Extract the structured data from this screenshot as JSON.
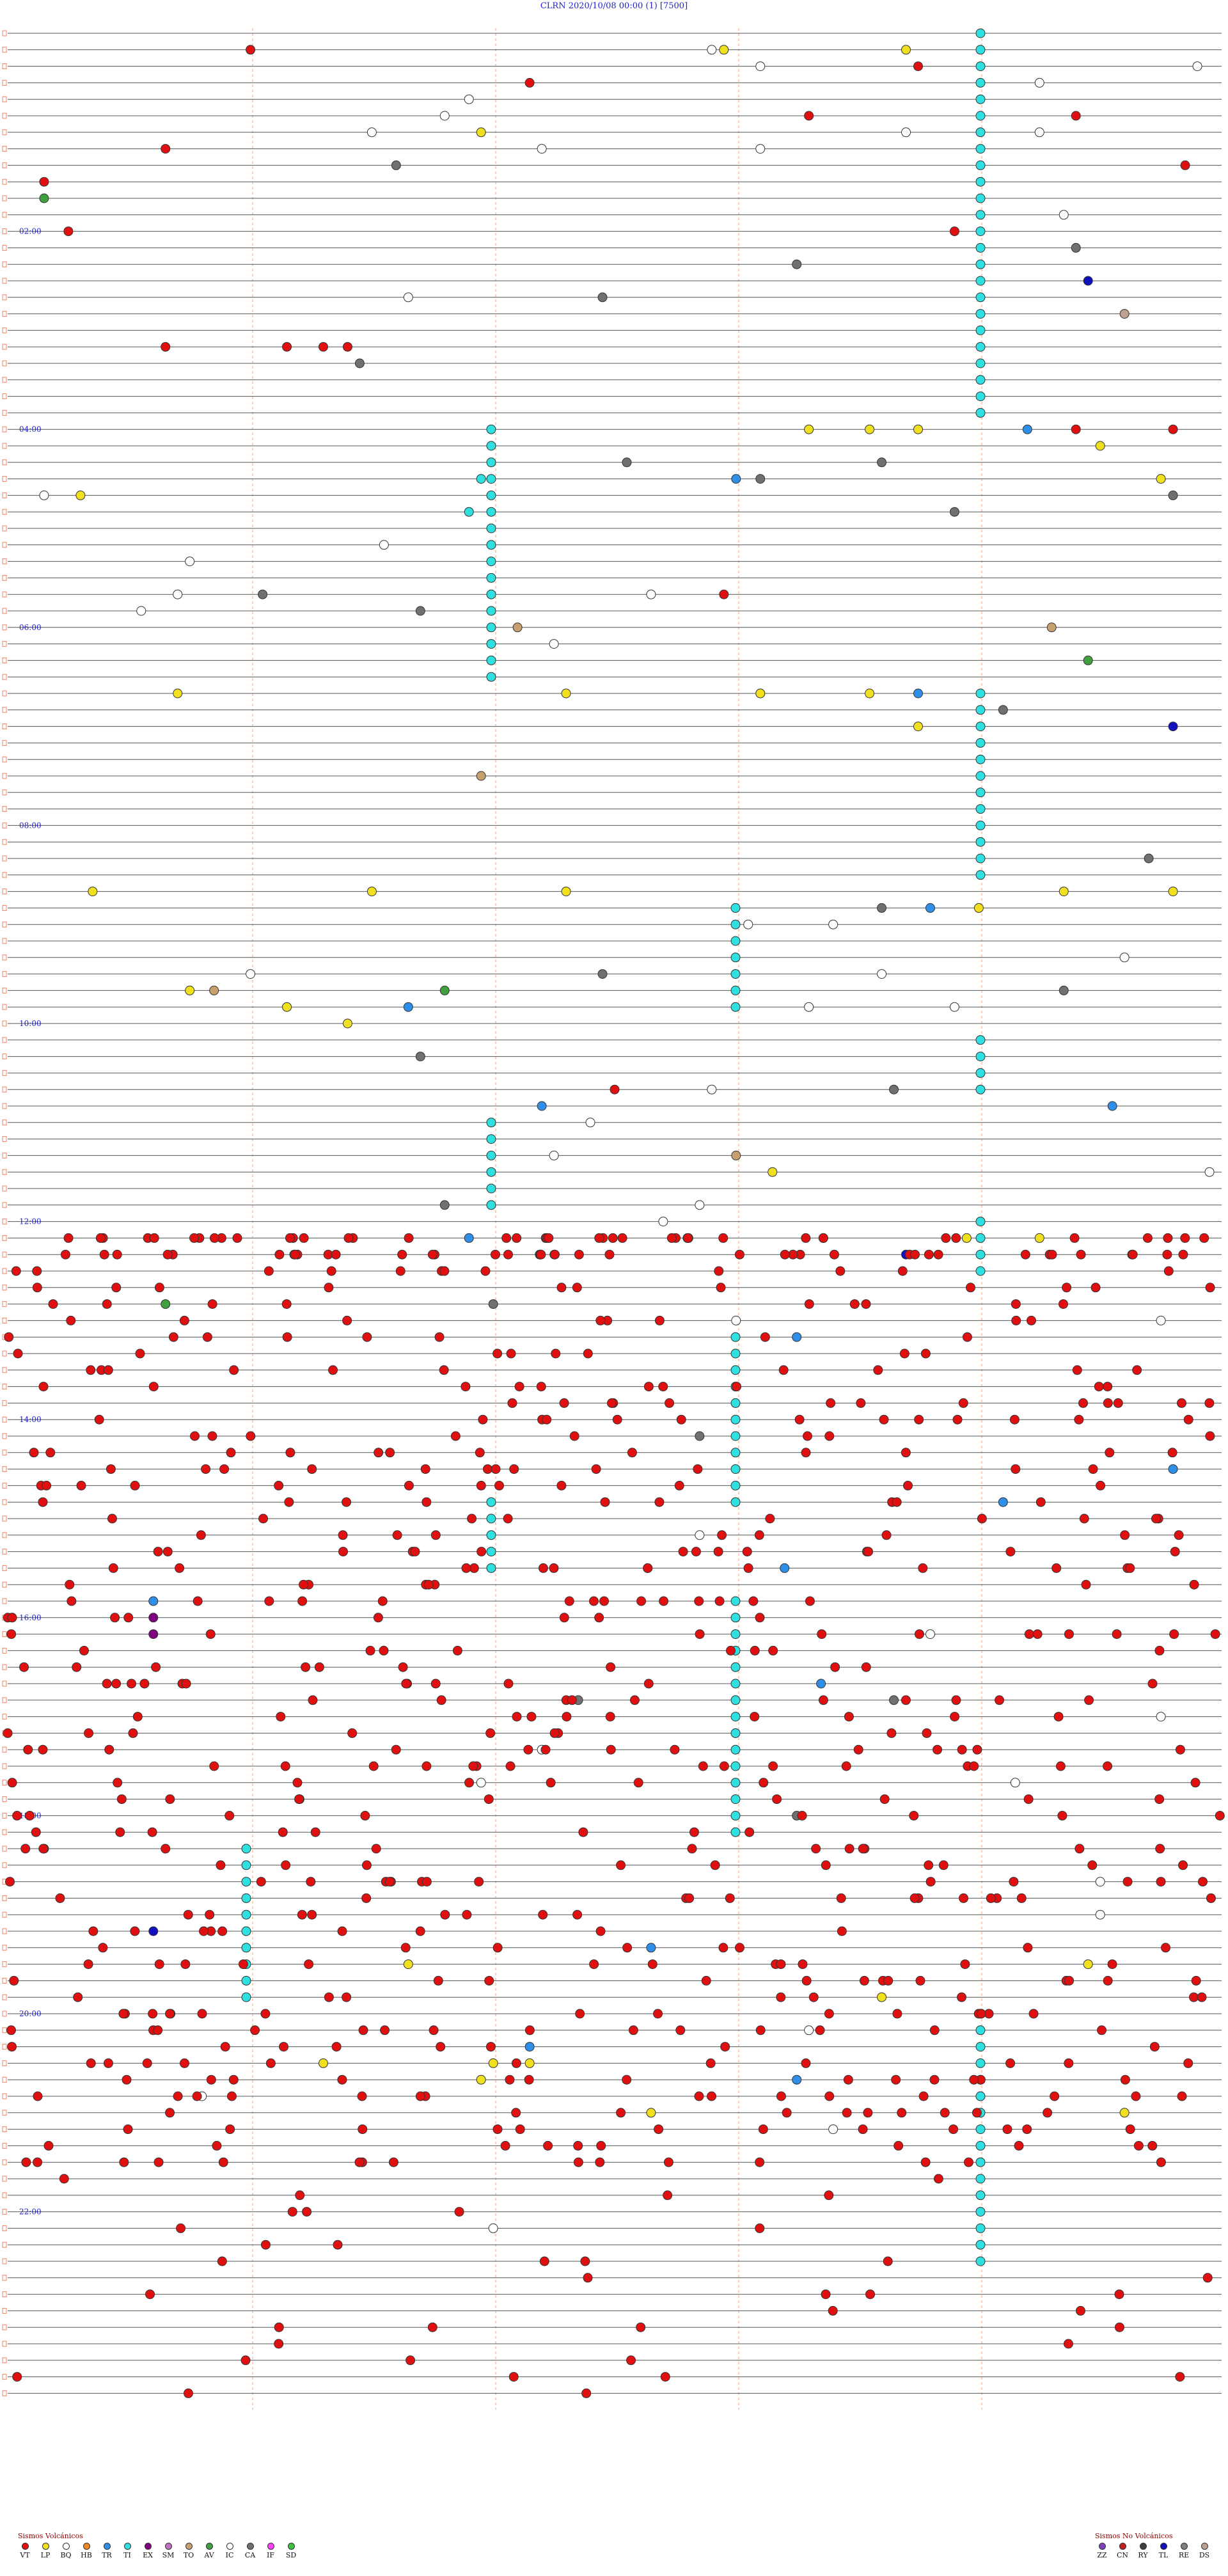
{
  "title": "CLRN     2020/10/08 00:00     (1)     [7500]",
  "chart_data": {
    "type": "scatter",
    "rows": 144,
    "minutes_per_row": 10,
    "hour_labels": [
      "02:00",
      "04:00",
      "06:00",
      "08:00",
      "10:00",
      "12:00",
      "14:00",
      "16:00",
      "18:00",
      "20:00",
      "22:00"
    ],
    "hour_label_rows": [
      12,
      24,
      36,
      48,
      60,
      72,
      84,
      96,
      108,
      120,
      132
    ],
    "colors": {
      "VT": "#e01010",
      "LP": "#f0e020",
      "BQ": "#ffffff",
      "HB": "#f08a20",
      "TR": "#2f8fe8",
      "TI": "#30e0e0",
      "EX": "#800080",
      "SM": "#c070c0",
      "TO": "#c8a070",
      "AV": "#40a040",
      "IC": "#ffffff",
      "CA": "#707070",
      "IF": "#ff40ff",
      "SD": "#40c040",
      "ZZ": "#8040c0",
      "CN": "#c02020",
      "RY": "#404040",
      "TL": "#1010c0",
      "RE": "#808080",
      "DS": "#c0a090"
    },
    "tremor_columns_minutes": [
      32,
      25,
      15,
      8,
      1
    ],
    "events": [
      {
        "row": 1,
        "min": 2.0,
        "type": "VT"
      },
      {
        "row": 1,
        "min": 5.8,
        "type": "BQ"
      },
      {
        "row": 1,
        "min": 7.4,
        "type": "LP"
      },
      {
        "row": 1,
        "min": 5.9,
        "type": "LP"
      },
      {
        "row": 2,
        "min": 9.8,
        "type": "BQ"
      },
      {
        "row": 2,
        "min": 6.2,
        "type": "BQ"
      },
      {
        "row": 2,
        "min": 7.5,
        "type": "VT"
      },
      {
        "row": 3,
        "min": 8.5,
        "type": "BQ"
      },
      {
        "row": 3,
        "min": 4.3,
        "type": "VT"
      },
      {
        "row": 4,
        "min": 3.8,
        "type": "BQ"
      },
      {
        "row": 5,
        "min": 3.6,
        "type": "BQ"
      },
      {
        "row": 5,
        "min": 6.6,
        "type": "VT"
      },
      {
        "row": 5,
        "min": 8.8,
        "type": "VT"
      },
      {
        "row": 6,
        "min": 3.0,
        "type": "BQ"
      },
      {
        "row": 6,
        "min": 3.9,
        "type": "LP"
      },
      {
        "row": 6,
        "min": 7.4,
        "type": "BQ"
      },
      {
        "row": 6,
        "min": 8.5,
        "type": "BQ"
      },
      {
        "row": 7,
        "min": 1.3,
        "type": "VT"
      },
      {
        "row": 7,
        "min": 4.4,
        "type": "BQ"
      },
      {
        "row": 7,
        "min": 6.2,
        "type": "BQ"
      },
      {
        "row": 8,
        "min": 3.2,
        "type": "CA"
      },
      {
        "row": 8,
        "min": 9.7,
        "type": "VT"
      },
      {
        "row": 9,
        "min": 0.3,
        "type": "VT"
      },
      {
        "row": 10,
        "min": 0.3,
        "type": "AV"
      },
      {
        "row": 11,
        "min": 8.7,
        "type": "BQ"
      },
      {
        "row": 12,
        "min": 0.5,
        "type": "VT"
      },
      {
        "row": 12,
        "min": 7.8,
        "type": "VT"
      },
      {
        "row": 13,
        "min": 8.8,
        "type": "CA"
      },
      {
        "row": 14,
        "min": 6.5,
        "type": "CA"
      },
      {
        "row": 15,
        "min": 8.9,
        "type": "TL"
      },
      {
        "row": 16,
        "min": 3.3,
        "type": "BQ"
      },
      {
        "row": 16,
        "min": 4.9,
        "type": "CA"
      },
      {
        "row": 17,
        "min": 9.2,
        "type": "DS"
      },
      {
        "row": 19,
        "min": 1.3,
        "type": "VT"
      },
      {
        "row": 19,
        "min": 2.6,
        "type": "VT"
      },
      {
        "row": 19,
        "min": 2.8,
        "type": "VT"
      },
      {
        "row": 19,
        "min": 2.3,
        "type": "VT"
      },
      {
        "row": 20,
        "min": 2.9,
        "type": "CA"
      },
      {
        "row": 24,
        "min": 6.6,
        "type": "LP"
      },
      {
        "row": 24,
        "min": 7.1,
        "type": "LP"
      },
      {
        "row": 24,
        "min": 7.5,
        "type": "LP"
      },
      {
        "row": 24,
        "min": 8.4,
        "type": "TR"
      },
      {
        "row": 24,
        "min": 8.8,
        "type": "VT"
      },
      {
        "row": 24,
        "min": 9.6,
        "type": "VT"
      },
      {
        "row": 25,
        "min": 9.0,
        "type": "LP"
      },
      {
        "row": 26,
        "min": 7.2,
        "type": "CA"
      },
      {
        "row": 26,
        "min": 5.1,
        "type": "CA"
      },
      {
        "row": 27,
        "min": 3.9,
        "type": "TI"
      },
      {
        "row": 27,
        "min": 6.0,
        "type": "TR"
      },
      {
        "row": 27,
        "min": 6.2,
        "type": "CA"
      },
      {
        "row": 27,
        "min": 9.5,
        "type": "LP"
      },
      {
        "row": 28,
        "min": 0.6,
        "type": "LP"
      },
      {
        "row": 28,
        "min": 0.3,
        "type": "BQ"
      },
      {
        "row": 28,
        "min": 9.6,
        "type": "CA"
      },
      {
        "row": 29,
        "min": 7.8,
        "type": "CA"
      },
      {
        "row": 29,
        "min": 3.8,
        "type": "TI"
      },
      {
        "row": 31,
        "min": 3.1,
        "type": "BQ"
      },
      {
        "row": 32,
        "min": 1.5,
        "type": "BQ"
      },
      {
        "row": 34,
        "min": 5.9,
        "type": "VT"
      },
      {
        "row": 34,
        "min": 1.4,
        "type": "BQ"
      },
      {
        "row": 34,
        "min": 2.1,
        "type": "CA"
      },
      {
        "row": 34,
        "min": 5.3,
        "type": "BQ"
      },
      {
        "row": 35,
        "min": 1.1,
        "type": "BQ"
      },
      {
        "row": 35,
        "min": 3.4,
        "type": "CA"
      },
      {
        "row": 36,
        "min": 4.2,
        "type": "TO"
      },
      {
        "row": 36,
        "min": 8.6,
        "type": "TO"
      },
      {
        "row": 37,
        "min": 4.5,
        "type": "BQ"
      },
      {
        "row": 38,
        "min": 8.9,
        "type": "AV"
      },
      {
        "row": 40,
        "min": 1.4,
        "type": "LP"
      },
      {
        "row": 40,
        "min": 4.6,
        "type": "LP"
      },
      {
        "row": 40,
        "min": 6.2,
        "type": "LP"
      },
      {
        "row": 40,
        "min": 7.1,
        "type": "LP"
      },
      {
        "row": 40,
        "min": 6.2,
        "type": "LP"
      },
      {
        "row": 40,
        "min": 7.5,
        "type": "TR"
      },
      {
        "row": 41,
        "min": 8.2,
        "type": "CA"
      },
      {
        "row": 42,
        "min": 7.5,
        "type": "LP"
      },
      {
        "row": 42,
        "min": 9.6,
        "type": "TL"
      },
      {
        "row": 45,
        "min": 3.9,
        "type": "TO"
      },
      {
        "row": 50,
        "min": 9.4,
        "type": "CA"
      },
      {
        "row": 52,
        "min": 0.7,
        "type": "LP"
      },
      {
        "row": 52,
        "min": 3.0,
        "type": "LP"
      },
      {
        "row": 52,
        "min": 4.6,
        "type": "LP"
      },
      {
        "row": 52,
        "min": 8.7,
        "type": "LP"
      },
      {
        "row": 52,
        "min": 9.6,
        "type": "LP"
      },
      {
        "row": 53,
        "min": 7.6,
        "type": "TR"
      },
      {
        "row": 53,
        "min": 8.0,
        "type": "LP"
      },
      {
        "row": 53,
        "min": 7.2,
        "type": "CA"
      },
      {
        "row": 54,
        "min": 6.1,
        "type": "BQ"
      },
      {
        "row": 54,
        "min": 6.8,
        "type": "BQ"
      },
      {
        "row": 56,
        "min": 9.2,
        "type": "BQ"
      },
      {
        "row": 57,
        "min": 2.0,
        "type": "BQ"
      },
      {
        "row": 57,
        "min": 4.9,
        "type": "CA"
      },
      {
        "row": 57,
        "min": 7.2,
        "type": "BQ"
      },
      {
        "row": 58,
        "min": 1.5,
        "type": "LP"
      },
      {
        "row": 58,
        "min": 1.7,
        "type": "TO"
      },
      {
        "row": 58,
        "min": 3.6,
        "type": "AV"
      },
      {
        "row": 58,
        "min": 8.7,
        "type": "CA"
      },
      {
        "row": 59,
        "min": 2.3,
        "type": "LP"
      },
      {
        "row": 59,
        "min": 3.3,
        "type": "TR"
      },
      {
        "row": 59,
        "min": 6.6,
        "type": "BQ"
      },
      {
        "row": 59,
        "min": 7.8,
        "type": "BQ"
      },
      {
        "row": 60,
        "min": 2.8,
        "type": "LP"
      },
      {
        "row": 62,
        "min": 3.4,
        "type": "CA"
      },
      {
        "row": 64,
        "min": 5.0,
        "type": "VT"
      },
      {
        "row": 64,
        "min": 5.8,
        "type": "BQ"
      },
      {
        "row": 64,
        "min": 7.3,
        "type": "CA"
      },
      {
        "row": 65,
        "min": 4.4,
        "type": "TR"
      },
      {
        "row": 65,
        "min": 9.1,
        "type": "TR"
      },
      {
        "row": 66,
        "min": 4.8,
        "type": "BQ"
      },
      {
        "row": 68,
        "min": 4.5,
        "type": "BQ"
      },
      {
        "row": 68,
        "min": 6.0,
        "type": "TO"
      },
      {
        "row": 69,
        "min": 6.3,
        "type": "LP"
      },
      {
        "row": 69,
        "min": 9.9,
        "type": "BQ"
      },
      {
        "row": 71,
        "min": 3.6,
        "type": "CA"
      },
      {
        "row": 71,
        "min": 5.7,
        "type": "BQ"
      },
      {
        "row": 72,
        "min": 5.4,
        "type": "BQ"
      },
      {
        "row": 73,
        "min": 5.6,
        "type": "LP"
      },
      {
        "row": 73,
        "min": 3.8,
        "type": "TR"
      },
      {
        "row": 73,
        "min": 7.9,
        "type": "LP"
      },
      {
        "row": 73,
        "min": 8.5,
        "type": "LP"
      },
      {
        "row": 74,
        "min": 7.4,
        "type": "TL"
      },
      {
        "row": 77,
        "min": 1.3,
        "type": "AV"
      },
      {
        "row": 77,
        "min": 4.0,
        "type": "CA"
      },
      {
        "row": 78,
        "min": 6.0,
        "type": "BQ"
      },
      {
        "row": 78,
        "min": 9.5,
        "type": "BQ"
      },
      {
        "row": 79,
        "min": 6.5,
        "type": "TR"
      },
      {
        "row": 85,
        "min": 5.7,
        "type": "CA"
      },
      {
        "row": 87,
        "min": 9.6,
        "type": "TR"
      },
      {
        "row": 89,
        "min": 8.2,
        "type": "TR"
      },
      {
        "row": 91,
        "min": 5.7,
        "type": "BQ"
      },
      {
        "row": 93,
        "min": 6.4,
        "type": "TR"
      },
      {
        "row": 95,
        "min": 1.2,
        "type": "TR"
      },
      {
        "row": 96,
        "min": 1.2,
        "type": "EX"
      },
      {
        "row": 97,
        "min": 1.2,
        "type": "EX"
      },
      {
        "row": 97,
        "min": 7.6,
        "type": "BQ"
      },
      {
        "row": 100,
        "min": 6.7,
        "type": "TR"
      },
      {
        "row": 101,
        "min": 4.7,
        "type": "CA"
      },
      {
        "row": 101,
        "min": 7.3,
        "type": "CA"
      },
      {
        "row": 102,
        "min": 9.5,
        "type": "BQ"
      },
      {
        "row": 104,
        "min": 4.4,
        "type": "BQ"
      },
      {
        "row": 106,
        "min": 3.9,
        "type": "BQ"
      },
      {
        "row": 106,
        "min": 8.3,
        "type": "BQ"
      },
      {
        "row": 108,
        "min": 6.5,
        "type": "CA"
      },
      {
        "row": 110,
        "min": 0.3,
        "type": "CA"
      },
      {
        "row": 112,
        "min": 9.0,
        "type": "BQ"
      },
      {
        "row": 114,
        "min": 9.0,
        "type": "BQ"
      },
      {
        "row": 115,
        "min": 1.2,
        "type": "TL"
      },
      {
        "row": 116,
        "min": 5.3,
        "type": "TR"
      },
      {
        "row": 117,
        "min": 3.3,
        "type": "LP"
      },
      {
        "row": 117,
        "min": 8.9,
        "type": "LP"
      },
      {
        "row": 119,
        "min": 7.2,
        "type": "LP"
      },
      {
        "row": 121,
        "min": 6.6,
        "type": "BQ"
      },
      {
        "row": 122,
        "min": 4.3,
        "type": "TR"
      },
      {
        "row": 123,
        "min": 4.0,
        "type": "LP"
      },
      {
        "row": 123,
        "min": 2.6,
        "type": "LP"
      },
      {
        "row": 123,
        "min": 4.3,
        "type": "LP"
      },
      {
        "row": 124,
        "min": 3.9,
        "type": "LP"
      },
      {
        "row": 124,
        "min": 6.5,
        "type": "TR"
      },
      {
        "row": 125,
        "min": 1.6,
        "type": "BQ"
      },
      {
        "row": 126,
        "min": 5.3,
        "type": "LP"
      },
      {
        "row": 126,
        "min": 9.2,
        "type": "LP"
      },
      {
        "row": 127,
        "min": 6.8,
        "type": "BQ"
      },
      {
        "row": 133,
        "min": 4.0,
        "type": "BQ"
      }
    ]
  },
  "legend_left": {
    "title": "Sismos Volcánicos",
    "items": [
      {
        "code": "VT",
        "color": "#e01010"
      },
      {
        "code": "LP",
        "color": "#f0e020"
      },
      {
        "code": "BQ",
        "color": "#ffffff"
      },
      {
        "code": "HB",
        "color": "#f08a20"
      },
      {
        "code": "TR",
        "color": "#2f8fe8"
      },
      {
        "code": "TI",
        "color": "#30e0e0"
      },
      {
        "code": "EX",
        "color": "#800080"
      },
      {
        "code": "SM",
        "color": "#c070c0"
      },
      {
        "code": "TO",
        "color": "#c8a070"
      },
      {
        "code": "AV",
        "color": "#40a040"
      },
      {
        "code": "IC",
        "color": "#ffffff"
      },
      {
        "code": "CA",
        "color": "#707070"
      },
      {
        "code": "IF",
        "color": "#ff40ff"
      },
      {
        "code": "SD",
        "color": "#40c040"
      }
    ]
  },
  "legend_right": {
    "title": "Sismos No Volcánicos",
    "items": [
      {
        "code": "ZZ",
        "color": "#8040c0"
      },
      {
        "code": "CN",
        "color": "#c02020"
      },
      {
        "code": "RY",
        "color": "#404040"
      },
      {
        "code": "TL",
        "color": "#1010c0"
      },
      {
        "code": "RE",
        "color": "#808080"
      },
      {
        "code": "DS",
        "color": "#c0a090"
      }
    ]
  }
}
